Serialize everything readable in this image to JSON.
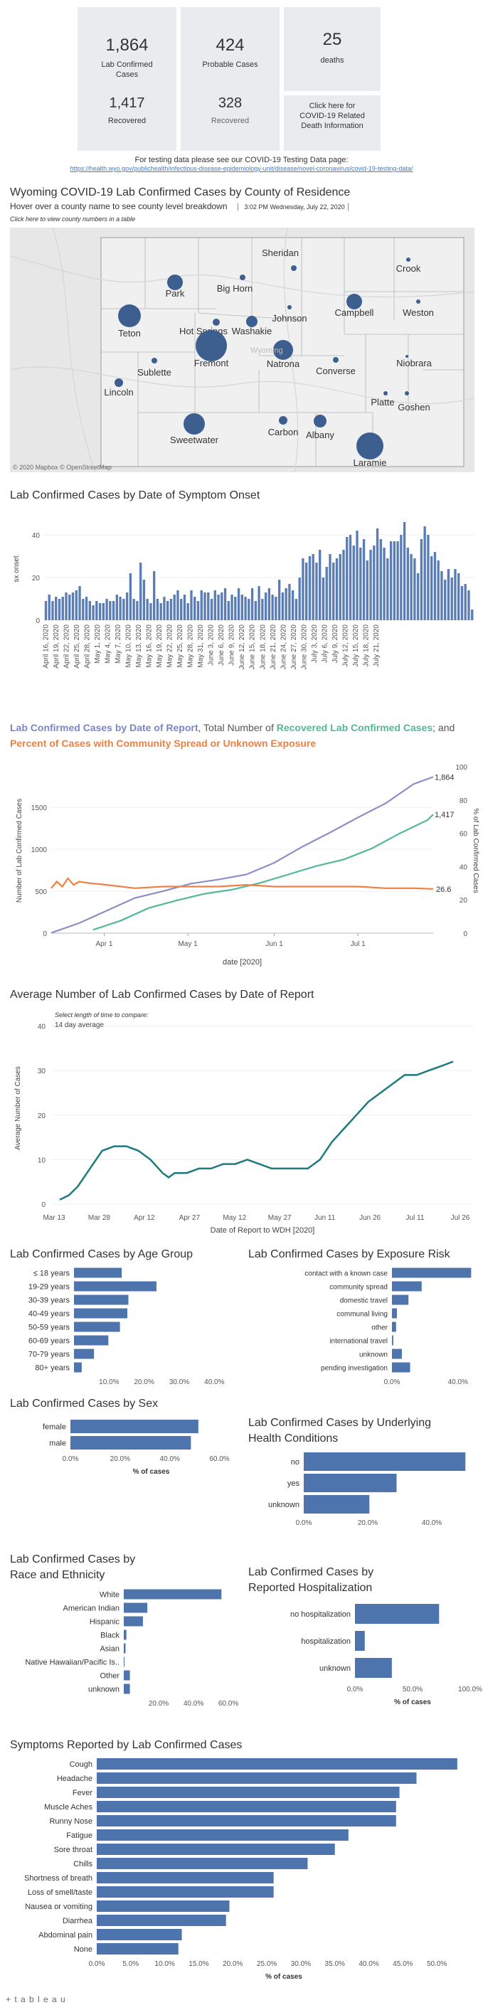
{
  "summary": {
    "lab_confirmed": {
      "value": "1,864",
      "label": "Lab Confirmed Cases"
    },
    "probable": {
      "value": "424",
      "label": "Probable Cases"
    },
    "deaths": {
      "value": "25",
      "label": "deaths"
    },
    "lab_recovered": {
      "value": "1,417",
      "label": "Recovered"
    },
    "probable_recovered": {
      "value": "328",
      "label": "Recovered"
    },
    "death_link": "Click here for COVID-19 Related Death Information"
  },
  "testing": {
    "text": "For testing data please see our COVID-19 Testing Data page:",
    "url": "https://health.wyo.gov/publichealth/infectious-disease-epidemiology-unit/disease/novel-coronavirus/covid-19-testing-data/"
  },
  "map": {
    "title": "Wyoming COVID-19 Lab Confirmed Cases by County of Residence",
    "subtitle": "Hover over a county name to see county level breakdown",
    "timestamp": "3:02 PM Wednesday, July 22, 2020",
    "table_link": "Click here to view county numbers in a table",
    "attribution": "© 2020 Mapbox © OpenStreetMap",
    "state_label": "Wyoming",
    "counties": [
      "Crook",
      "Sheridan",
      "Big Horn",
      "Park",
      "Campbell",
      "Weston",
      "Johnson",
      "Washakie",
      "Hot Springs",
      "Teton",
      "Fremont",
      "Natrona",
      "Niobrara",
      "Converse",
      "Sublette",
      "Lincoln",
      "Platte",
      "Goshen",
      "Sweetwater",
      "Carbon",
      "Albany",
      "Laramie"
    ],
    "dot_color": "#3d5f8f"
  },
  "onset": {
    "title": "Lab Confirmed Cases by Date of Symptom Onset",
    "ylabel": "sx onset",
    "bar_color": "#5b7db5"
  },
  "report": {
    "title_parts": [
      "Lab Confirmed Cases by Date of Report",
      ", Total Number of ",
      "Recovered Lab Confirmed Cases",
      "; and ",
      "Percent of Cases with Community Spread or Unknown Exposure"
    ],
    "ylabel_left": "Number of Lab Confirmed Cases",
    "ylabel_right": "% of Lab Confirmed Cases",
    "xlabel": "date [2020]",
    "colors": {
      "cases": "#8a8fc8",
      "recovered": "#52b896",
      "percent": "#f08040"
    },
    "end_labels": {
      "cases": "1,864",
      "recovered": "1,417",
      "percent": "26.6"
    }
  },
  "average": {
    "title": "Average Number of Lab Confirmed Cases by Date of Report",
    "control_label": "Select length of time to compare:",
    "control_value": "14 day average",
    "ylabel": "Average Number of Cases",
    "xlabel": "Date of Report to WDH [2020]",
    "line_color": "#1d7a7f"
  },
  "age": {
    "title": "Lab Confirmed Cases by Age Group"
  },
  "exposure": {
    "title": "Lab Confirmed Cases by Exposure Risk"
  },
  "sex": {
    "title": "Lab Confirmed Cases by Sex",
    "xlabel": "% of cases"
  },
  "health": {
    "title_line1": "Lab Confirmed Cases by Underlying",
    "title_line2": "Health Conditions"
  },
  "race": {
    "title_line1": "Lab Confirmed Cases by",
    "title_line2": "Race and Ethnicity"
  },
  "hosp": {
    "title_line1": "Lab Confirmed Cases by",
    "title_line2": "Reported Hospitalization",
    "xlabel": "% of cases"
  },
  "symptoms": {
    "title": "Symptoms Reported by Lab Confirmed Cases",
    "xlabel": "% of cases"
  },
  "footer": {
    "logo": "+ t a b l e a u"
  },
  "chart_data": [
    {
      "type": "bar",
      "id": "onset",
      "title": "Lab Confirmed Cases by Date of Symptom Onset",
      "ylabel": "sx onset",
      "ylim": [
        0,
        48
      ],
      "tick_labels": [
        "April 16, 2020",
        "April 19, 2020",
        "April 22, 2020",
        "April 25, 2020",
        "April 28, 2020",
        "May 1, 2020",
        "May 4, 2020",
        "May 7, 2020",
        "May 10, 2020",
        "May 13, 2020",
        "May 16, 2020",
        "May 19, 2020",
        "May 22, 2020",
        "May 25, 2020",
        "May 28, 2020",
        "May 31, 2020",
        "June 3, 2020",
        "June 6, 2020",
        "June 9, 2020",
        "June 12, 2020",
        "June 15, 2020",
        "June 18, 2020",
        "June 21, 2020",
        "June 24, 2020",
        "June 27, 2020",
        "June 30, 2020",
        "July 3, 2020",
        "July 6, 2020",
        "July 9, 2020",
        "July 12, 2020",
        "July 15, 2020",
        "July 18, 2020",
        "July 21, 2020"
      ],
      "y_ticks": [
        0,
        20,
        40
      ],
      "values": [
        9,
        12,
        9,
        11,
        10,
        11,
        13,
        12,
        13,
        14,
        16,
        10,
        11,
        9,
        7,
        9,
        8,
        8,
        10,
        9,
        9,
        12,
        11,
        10,
        13,
        22,
        10,
        9,
        27,
        19,
        10,
        8,
        23,
        10,
        8,
        11,
        9,
        10,
        12,
        14,
        10,
        12,
        8,
        14,
        11,
        9,
        14,
        13,
        13,
        10,
        14,
        12,
        13,
        15,
        9,
        12,
        11,
        15,
        12,
        11,
        10,
        15,
        9,
        16,
        10,
        13,
        15,
        12,
        11,
        19,
        13,
        15,
        17,
        14,
        10,
        20,
        29,
        27,
        30,
        31,
        27,
        33,
        20,
        25,
        31,
        27,
        29,
        31,
        33,
        39,
        40,
        35,
        42,
        34,
        38,
        28,
        33,
        35,
        43,
        38,
        34,
        29,
        37,
        37,
        37,
        40,
        46,
        34,
        31,
        29,
        22,
        38,
        44,
        40,
        30,
        32,
        28,
        23,
        19,
        24,
        20,
        24,
        22,
        16,
        17,
        14,
        5
      ]
    },
    {
      "type": "line",
      "id": "report",
      "x_ticks": [
        "Apr 1",
        "May 1",
        "Jun 1",
        "Jul 1"
      ],
      "y_left_ticks": [
        0,
        500,
        1000,
        1500
      ],
      "y_right_ticks": [
        0,
        20,
        40,
        60,
        80,
        100
      ],
      "ylim_left": [
        0,
        1985
      ],
      "ylim_right": [
        0,
        100
      ],
      "series": [
        {
          "name": "Lab Confirmed Cases by Date of Report",
          "x_day": [
            0,
            10,
            20,
            30,
            40,
            50,
            60,
            70,
            80,
            90,
            100,
            110,
            120,
            130,
            137
          ],
          "values": [
            3,
            120,
            270,
            420,
            500,
            590,
            640,
            700,
            840,
            1030,
            1200,
            1380,
            1550,
            1780,
            1864
          ]
        },
        {
          "name": "Recovered Lab Confirmed Cases",
          "x_day": [
            15,
            25,
            35,
            45,
            55,
            65,
            75,
            85,
            95,
            105,
            115,
            125,
            135,
            137
          ],
          "values": [
            40,
            150,
            300,
            390,
            470,
            520,
            600,
            700,
            800,
            880,
            1010,
            1190,
            1350,
            1417
          ]
        },
        {
          "name": "Percent of Cases with Community Spread or Unknown Exposure",
          "x_day": [
            0,
            2,
            4,
            6,
            8,
            10,
            14,
            20,
            30,
            40,
            50,
            60,
            70,
            80,
            90,
            100,
            110,
            120,
            130,
            137
          ],
          "values": [
            27,
            31,
            28,
            33,
            29,
            31,
            30,
            29,
            27,
            28,
            28,
            28,
            29,
            28,
            28,
            28,
            28,
            27,
            27,
            26.6
          ]
        }
      ]
    },
    {
      "type": "line",
      "id": "average",
      "title": "Average Number of Lab Confirmed Cases by Date of Report",
      "x_ticks": [
        "Mar 13",
        "Mar 28",
        "Apr 12",
        "Apr 27",
        "May 12",
        "May 27",
        "Jun 11",
        "Jun 26",
        "Jul 11",
        "Jul 26"
      ],
      "y_ticks": [
        0,
        10,
        20,
        30,
        40
      ],
      "ylim": [
        0,
        42
      ],
      "x_day": [
        0,
        3,
        6,
        10,
        14,
        18,
        22,
        26,
        30,
        34,
        36,
        38,
        42,
        46,
        50,
        54,
        58,
        62,
        66,
        70,
        74,
        78,
        82,
        86,
        90,
        94,
        98,
        102,
        106,
        110,
        114,
        118,
        122,
        126,
        130
      ],
      "values": [
        1,
        2,
        4,
        8,
        12,
        13,
        13,
        12,
        10,
        7,
        6,
        7,
        7,
        8,
        8,
        9,
        9,
        10,
        9,
        8,
        8,
        8,
        8,
        10,
        14,
        17,
        20,
        23,
        25,
        27,
        29,
        29,
        30,
        31,
        32
      ]
    },
    {
      "type": "bar",
      "id": "age",
      "orientation": "horizontal",
      "categories": [
        "≤ 18 years",
        "19-29 years",
        "30-39 years",
        "40-49 years",
        "50-59 years",
        "60-69 years",
        "70-79 years",
        "80+ years"
      ],
      "values": [
        13.6,
        23.5,
        15.5,
        15.2,
        13.1,
        9.8,
        5.7,
        2.2
      ],
      "x_ticks": [
        "10.0%",
        "20.0%",
        "30.0%",
        "40.0%"
      ],
      "xlim": [
        0,
        45
      ]
    },
    {
      "type": "bar",
      "id": "exposure",
      "orientation": "horizontal",
      "categories": [
        "contact with a known case",
        "community spread",
        "domestic travel",
        "communal living",
        "other",
        "international travel",
        "unknown",
        "pending investigation"
      ],
      "values": [
        48,
        18,
        10,
        3,
        2.5,
        0.8,
        6,
        11
      ],
      "x_ticks": [
        "0.0%",
        "40.0%"
      ],
      "xlim": [
        0,
        50
      ]
    },
    {
      "type": "bar",
      "id": "sex",
      "orientation": "horizontal",
      "categories": [
        "female",
        "male"
      ],
      "values": [
        51.5,
        48.5
      ],
      "x_ticks": [
        "0.0%",
        "20.0%",
        "40.0%",
        "60.0%"
      ],
      "xlim": [
        0,
        65
      ]
    },
    {
      "type": "bar",
      "id": "health",
      "orientation": "horizontal",
      "categories": [
        "no",
        "yes",
        "unknown"
      ],
      "values": [
        50.5,
        29,
        20.5
      ],
      "x_ticks": [
        "0.0%",
        "20.0%",
        "40.0%"
      ],
      "xlim": [
        0,
        52
      ]
    },
    {
      "type": "bar",
      "id": "race",
      "orientation": "horizontal",
      "categories": [
        "White",
        "American Indian",
        "Hispanic",
        "Black",
        "Asian",
        "Native Hawaiian/Pacific Is..",
        "Other",
        "unknown"
      ],
      "values": [
        56,
        13.5,
        11,
        1.5,
        1,
        0.3,
        3.5,
        3.5
      ],
      "x_ticks": [
        "20.0%",
        "40.0%",
        "60.0%"
      ],
      "xlim": [
        0,
        62
      ]
    },
    {
      "type": "bar",
      "id": "hosp",
      "orientation": "horizontal",
      "categories": [
        "no hospitalization",
        "hospitalization",
        "unknown"
      ],
      "values": [
        73,
        8.5,
        32
      ],
      "x_ticks": [
        "0.0%",
        "50.0%",
        "100.0%"
      ],
      "xlim": [
        0,
        100
      ]
    },
    {
      "type": "bar",
      "id": "symptoms",
      "orientation": "horizontal",
      "categories": [
        "Cough",
        "Headache",
        "Fever",
        "Muscle Aches",
        "Runny Nose",
        "Fatigue",
        "Sore throat",
        "Chills",
        "Shortness of breath",
        "Loss of smell/taste",
        "Nausea or vomiting",
        "Diarrhea",
        "Abdominal pain",
        "None"
      ],
      "values": [
        53,
        47,
        44.5,
        44,
        44,
        37,
        35,
        31,
        26,
        26,
        19.5,
        19,
        12.5,
        12
      ],
      "x_ticks": [
        "0.0%",
        "5.0%",
        "10.0%",
        "15.0%",
        "20.0%",
        "25.0%",
        "30.0%",
        "35.0%",
        "40.0%",
        "45.0%",
        "50.0%"
      ],
      "xlim": [
        0,
        55
      ]
    }
  ]
}
